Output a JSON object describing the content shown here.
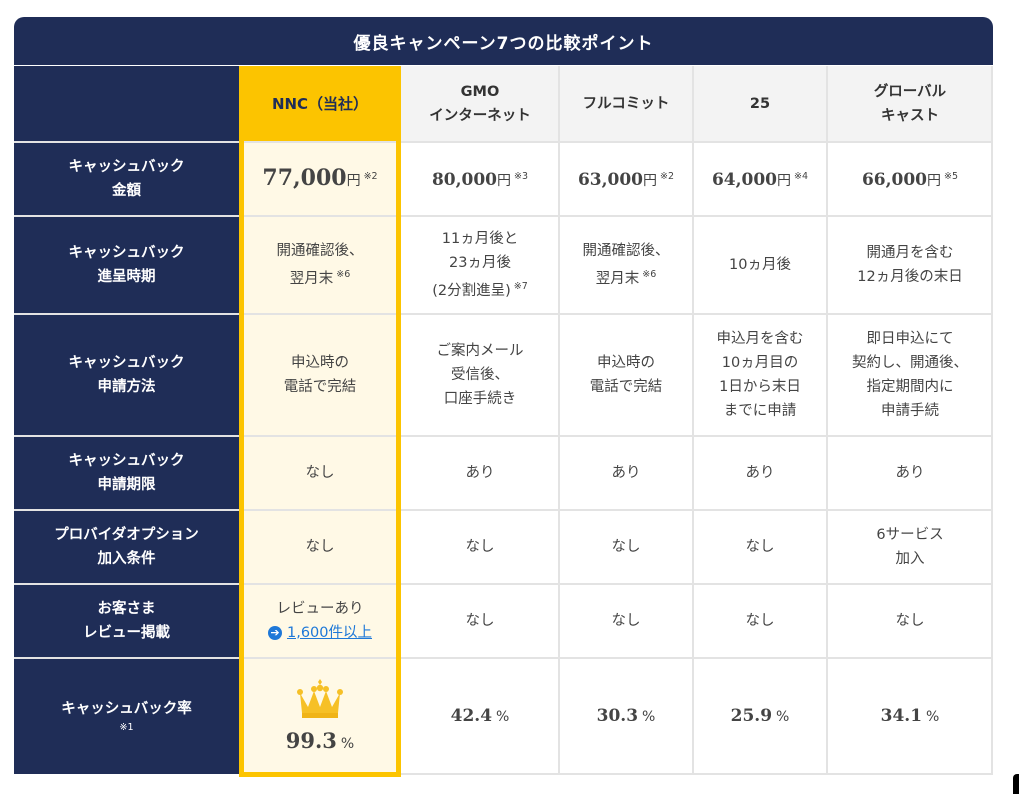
{
  "title": "優良キャンペーン7つの比較ポイント",
  "columns": [
    {
      "line1": "NNC（当社）",
      "line2": ""
    },
    {
      "line1": "GMO",
      "line2": "インターネット"
    },
    {
      "line1": "フルコミット",
      "line2": ""
    },
    {
      "line1": "25",
      "line2": ""
    },
    {
      "line1": "グローバル",
      "line2": "キャスト"
    }
  ],
  "rows": {
    "amount": {
      "label1": "キャッシュバック",
      "label2": "金額",
      "values": [
        {
          "num": "77,000",
          "yen": "円",
          "note": "※2"
        },
        {
          "num": "80,000",
          "yen": "円",
          "note": "※3"
        },
        {
          "num": "63,000",
          "yen": "円",
          "note": "※2"
        },
        {
          "num": "64,000",
          "yen": "円",
          "note": "※4"
        },
        {
          "num": "66,000",
          "yen": "円",
          "note": "※5"
        }
      ]
    },
    "timing": {
      "label1": "キャッシュバック",
      "label2": "進呈時期",
      "nnc": {
        "l1": "開通確認後、",
        "l2": "翌月末",
        "note": "※6"
      },
      "gmo": {
        "l1": "11ヵ月後と",
        "l2": "23ヵ月後",
        "l3": "(2分割進呈)",
        "note": "※7"
      },
      "full": {
        "l1": "開通確認後、",
        "l2": "翌月末",
        "note": "※6"
      },
      "c25": {
        "l1": "10ヵ月後"
      },
      "global": {
        "l1": "開通月を含む",
        "l2": "12ヵ月後の末日"
      }
    },
    "method": {
      "label1": "キャッシュバック",
      "label2": "申請方法",
      "nnc": {
        "l1": "申込時の",
        "l2": "電話で完結"
      },
      "gmo": {
        "l1": "ご案内メール",
        "l2": "受信後、",
        "l3": "口座手続き"
      },
      "full": {
        "l1": "申込時の",
        "l2": "電話で完結"
      },
      "c25": {
        "l1": "申込月を含む",
        "l2": "10ヵ月目の",
        "l3": "1日から末日",
        "l4": "までに申請"
      },
      "global": {
        "l1": "即日申込にて",
        "l2": "契約し、開通後、",
        "l3": "指定期間内に",
        "l4": "申請手続"
      }
    },
    "deadline": {
      "label1": "キャッシュバック",
      "label2": "申請期限",
      "values": [
        "なし",
        "あり",
        "あり",
        "あり",
        "あり"
      ]
    },
    "option": {
      "label1": "プロバイダオプション",
      "label2": "加入条件",
      "values": [
        "なし",
        "なし",
        "なし",
        "なし"
      ],
      "global": {
        "l1": "6サービス",
        "l2": "加入"
      }
    },
    "review": {
      "label1": "お客さま",
      "label2": "レビュー掲載",
      "nnc": {
        "l1": "レビューあり",
        "link": "1,600件以上"
      },
      "values": [
        "なし",
        "なし",
        "なし",
        "なし"
      ]
    },
    "rate": {
      "label1": "キャッシュバック率",
      "note": "※1",
      "values": [
        {
          "num": "99.3",
          "pct": "%"
        },
        {
          "num": "42.4",
          "pct": "%"
        },
        {
          "num": "30.3",
          "pct": "%"
        },
        {
          "num": "25.9",
          "pct": "%"
        },
        {
          "num": "34.1",
          "pct": "%"
        }
      ]
    }
  },
  "colors": {
    "navy": "#1f2d57",
    "gold": "#fcc400",
    "cream": "#fff9e6",
    "link": "#1e78d8"
  },
  "icons": {
    "crown": "crown-icon",
    "link_arrow": "arrow-right-circle-icon"
  }
}
